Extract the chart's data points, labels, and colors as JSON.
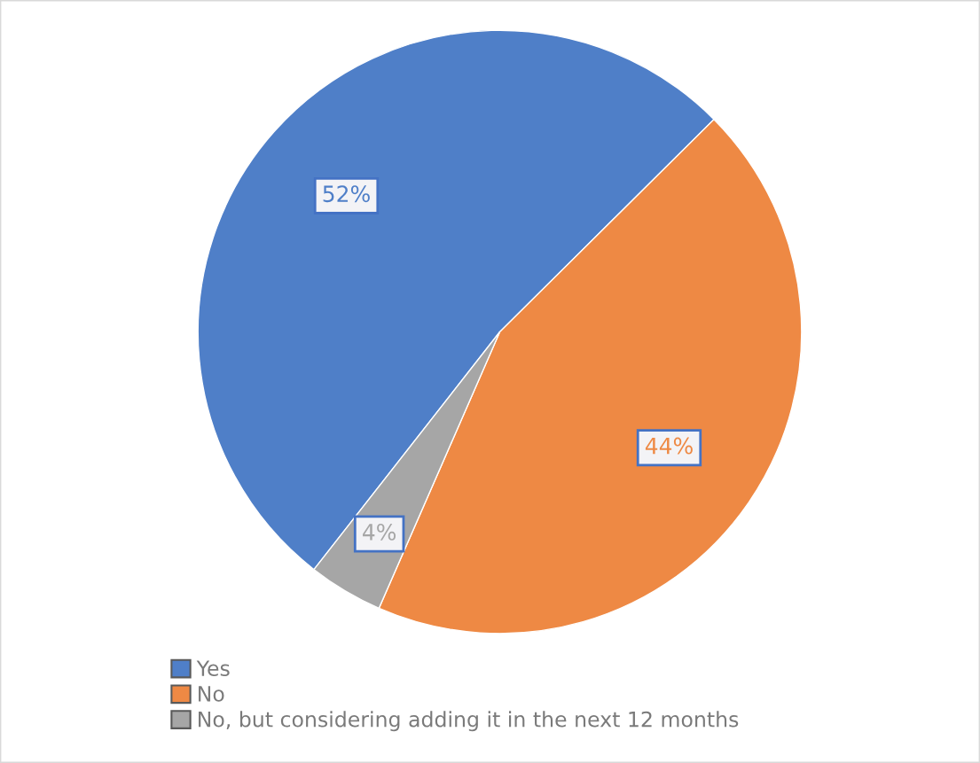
{
  "chart_data": {
    "type": "pie",
    "categories": [
      "Yes",
      "No",
      "No, but considering adding it in the next 12 months"
    ],
    "values": [
      52,
      44,
      4
    ],
    "colors": [
      "#4f7fc8",
      "#ee8944",
      "#a6a6a6"
    ],
    "value_labels": [
      "52%",
      "44%",
      "4%"
    ],
    "legend": "bottom left"
  }
}
